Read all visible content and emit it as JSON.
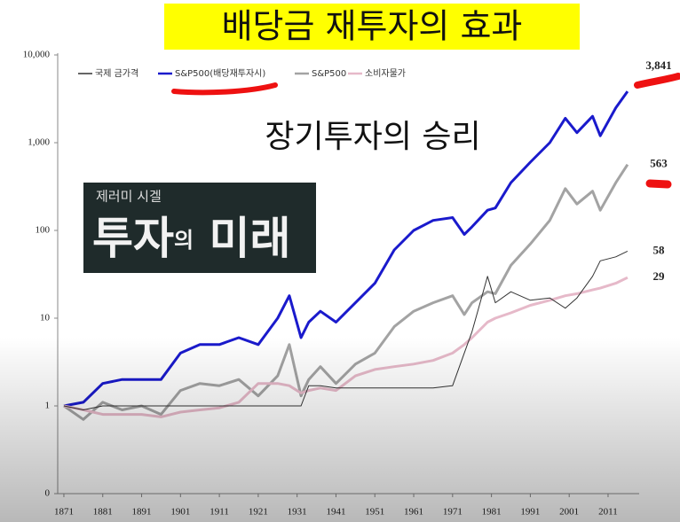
{
  "chart_data": {
    "type": "line",
    "title": "배당금 재투자의 효과",
    "annotation": "장기투자의 승리",
    "book_author": "제러미 시겔",
    "book_title": [
      "투자",
      "의",
      " 미래"
    ],
    "log_scale": true,
    "legend": "top",
    "xlim": [
      1869,
      2019
    ],
    "xticks": [
      1871,
      1881,
      1891,
      1901,
      1911,
      1921,
      1931,
      1941,
      1951,
      1961,
      1971,
      1981,
      1991,
      2001,
      2011
    ],
    "ylim": [
      0.1,
      10000
    ],
    "yticks": [
      {
        "value": 0.1,
        "label": "0"
      },
      1,
      10,
      100,
      {
        "value": 1000,
        "label": "1,000"
      },
      {
        "value": 10000,
        "label": "10,000"
      }
    ],
    "x": [
      1871,
      1876,
      1881,
      1886,
      1891,
      1896,
      1901,
      1906,
      1911,
      1916,
      1921,
      1926,
      1929,
      1932,
      1934,
      1937,
      1941,
      1946,
      1951,
      1956,
      1961,
      1966,
      1971,
      1974,
      1976,
      1980,
      1982,
      1986,
      1991,
      1996,
      2000,
      2003,
      2007,
      2009,
      2013,
      2016
    ],
    "series": [
      {
        "name": "국제 금가격",
        "color": "#333333",
        "width": 1,
        "values": [
          1,
          0.9,
          1,
          1,
          1,
          1,
          1,
          1,
          1,
          1,
          1,
          1,
          1,
          1,
          1.7,
          1.7,
          1.6,
          1.6,
          1.6,
          1.6,
          1.6,
          1.6,
          1.7,
          4,
          7,
          30,
          15,
          20,
          16,
          17,
          13,
          17,
          30,
          45,
          50,
          58
        ],
        "value_labels": [
          null,
          null,
          null,
          null,
          null,
          null,
          null,
          null,
          null,
          null,
          null,
          null,
          null,
          null,
          null,
          null,
          null,
          null,
          null,
          null,
          null,
          null,
          null,
          null,
          null,
          null,
          null,
          null,
          null,
          null,
          null,
          null,
          null,
          null,
          null,
          "58"
        ]
      },
      {
        "name": "S&P500(배당재투자시)",
        "color": "#1a1acc",
        "width": 3,
        "values": [
          1,
          1.1,
          1.8,
          2,
          2,
          2,
          4,
          5,
          5,
          6,
          5,
          10,
          18,
          6,
          9,
          12,
          9,
          15,
          25,
          60,
          100,
          130,
          140,
          90,
          110,
          170,
          180,
          350,
          600,
          1000,
          1900,
          1300,
          2000,
          1200,
          2500,
          3841
        ],
        "value_labels": [
          null,
          null,
          null,
          null,
          null,
          null,
          null,
          null,
          null,
          null,
          null,
          null,
          null,
          null,
          null,
          null,
          null,
          null,
          null,
          null,
          null,
          null,
          null,
          null,
          null,
          null,
          null,
          null,
          null,
          null,
          null,
          null,
          null,
          null,
          null,
          "3,841"
        ]
      },
      {
        "name": "S&P500",
        "color": "#a3a3a3",
        "width": 3,
        "values": [
          1,
          0.7,
          1.1,
          0.9,
          1,
          0.8,
          1.5,
          1.8,
          1.7,
          2,
          1.3,
          2.2,
          5,
          1.3,
          2,
          2.8,
          1.8,
          3,
          4,
          8,
          12,
          15,
          18,
          11,
          15,
          20,
          19,
          40,
          70,
          130,
          300,
          200,
          280,
          170,
          350,
          563
        ],
        "value_labels": [
          null,
          null,
          null,
          null,
          null,
          null,
          null,
          null,
          null,
          null,
          null,
          null,
          null,
          null,
          null,
          null,
          null,
          null,
          null,
          null,
          null,
          null,
          null,
          null,
          null,
          null,
          null,
          null,
          null,
          null,
          null,
          null,
          null,
          null,
          null,
          "563"
        ]
      },
      {
        "name": "소비자물가",
        "color": "#e6b9c9",
        "width": 3,
        "values": [
          1,
          0.9,
          0.8,
          0.8,
          0.8,
          0.75,
          0.85,
          0.9,
          0.95,
          1.1,
          1.8,
          1.8,
          1.7,
          1.4,
          1.5,
          1.6,
          1.5,
          2.2,
          2.6,
          2.8,
          3,
          3.3,
          4,
          5,
          6,
          9,
          10,
          11.5,
          14,
          16,
          18,
          19,
          21,
          22,
          25,
          29
        ],
        "value_labels": [
          null,
          null,
          null,
          null,
          null,
          null,
          null,
          null,
          null,
          null,
          null,
          null,
          null,
          null,
          null,
          null,
          null,
          null,
          null,
          null,
          null,
          null,
          null,
          null,
          null,
          null,
          null,
          null,
          null,
          null,
          null,
          null,
          null,
          null,
          null,
          "29"
        ]
      }
    ]
  }
}
